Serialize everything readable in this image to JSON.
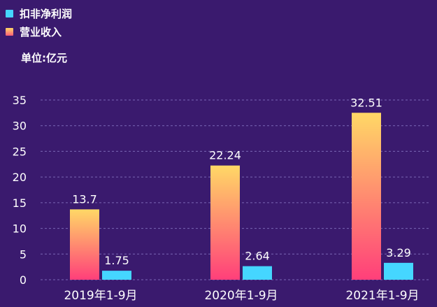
{
  "chart_data": {
    "type": "bar",
    "categories": [
      "2019年1-9月",
      "2020年1-9月",
      "2021年1-9月"
    ],
    "series": [
      {
        "name": "营业收入",
        "values": [
          13.7,
          22.24,
          32.51
        ],
        "color_top": "#ffd866",
        "color_bottom": "#ff3f7a"
      },
      {
        "name": "扣非净利润",
        "values": [
          1.75,
          2.64,
          3.29
        ],
        "color": "#45d6ff"
      }
    ],
    "data_labels": [
      [
        "13.7",
        "22.24",
        "32.51"
      ],
      [
        "1.75",
        "2.64",
        "3.29"
      ]
    ],
    "y_ticks": [
      "0",
      "5",
      "10",
      "15",
      "20",
      "25",
      "30",
      "35"
    ],
    "ylim": [
      0,
      35
    ],
    "unit_label": "单位:亿元",
    "legend_placement": "top-left",
    "grid": true,
    "grid_style": "dashed"
  },
  "legend": [
    {
      "label": "扣非净利润",
      "color": "#45d6ff"
    },
    {
      "label": "营业收入",
      "color": "#ff9a6e"
    }
  ],
  "colors": {
    "background": "#3a1a6e",
    "grid": "#7b67b5",
    "text": "#ffffff"
  }
}
